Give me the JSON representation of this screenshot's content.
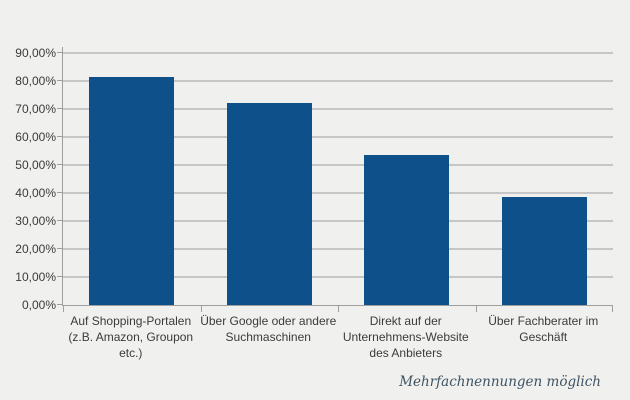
{
  "chart_data": {
    "type": "bar",
    "categories": [
      "Auf Shopping-Portalen\n(z.B. Amazon, Groupon\netc.)",
      "Über Google oder andere\nSuchmaschinen",
      "Direkt auf der\nUnternehmens-Website\ndes Anbieters",
      "Über Fachberater im\nGeschäft"
    ],
    "values": [
      81.5,
      72.1,
      53.7,
      38.6
    ],
    "title": "",
    "xlabel": "",
    "ylabel": "",
    "ylim": [
      0,
      92
    ],
    "ytick_values": [
      0,
      10,
      20,
      30,
      40,
      50,
      60,
      70,
      80,
      90
    ],
    "ytick_labels": [
      "0,00%",
      "10,00%",
      "20,00%",
      "30,00%",
      "40,00%",
      "50,00%",
      "60,00%",
      "70,00%",
      "80,00%",
      "90,00%"
    ],
    "grid": "horizontal",
    "legend": "none",
    "footnote": "Mehrfachnennungen möglich",
    "colors": {
      "background": "#f0f0ef",
      "bar": "#0e5089",
      "gridline": "#c6c6c6",
      "axis": "#9f9f9f",
      "tick_text": "#3b3b3b",
      "footnote_text": "#3e5363"
    }
  }
}
